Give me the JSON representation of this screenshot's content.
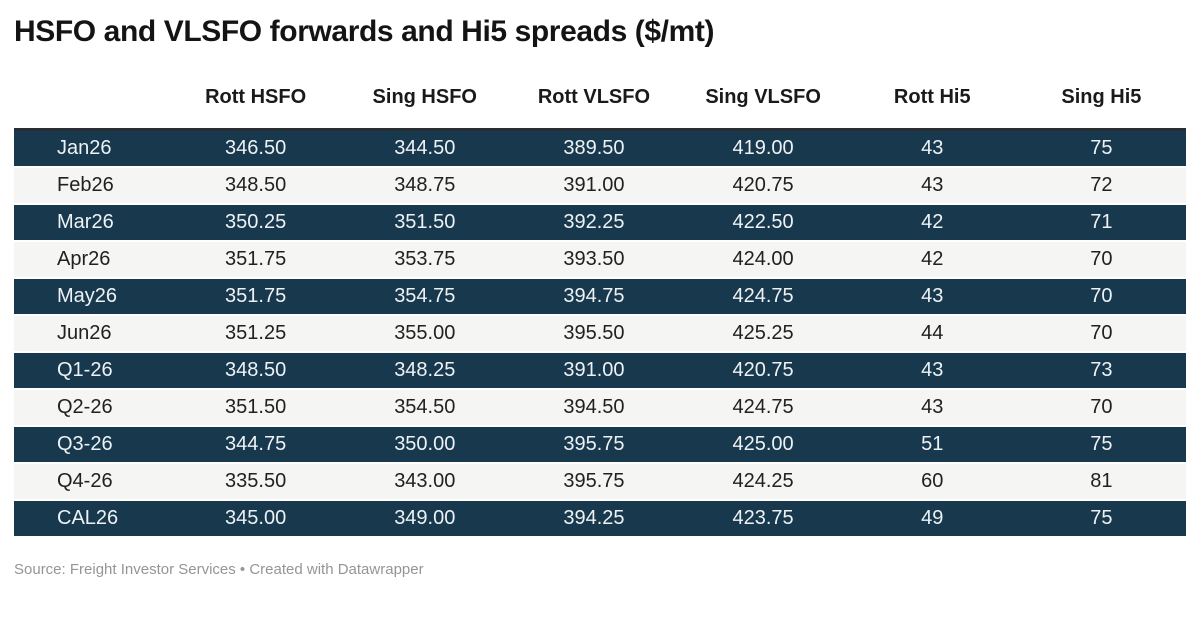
{
  "title": "HSFO and VLSFO forwards and Hi5 spreads ($/mt)",
  "footer": {
    "text": "Source: Freight Investor Services • Created with Datawrapper"
  },
  "colors": {
    "row_dark_bg": "#17384d",
    "row_light_bg": "#f5f5f3",
    "header_rule": "#2a2d31",
    "dark_row_text": "#eef2f5",
    "light_row_text": "#212121",
    "title_text": "#141414",
    "footer_text": "#959595"
  },
  "chart_data": {
    "type": "table",
    "title": "HSFO and VLSFO forwards and Hi5 spreads ($/mt)",
    "columns": [
      "",
      "Rott HSFO",
      "Sing HSFO",
      "Rott VLSFO",
      "Sing VLSFO",
      "Rott Hi5",
      "Sing Hi5"
    ],
    "rows": [
      [
        "Jan26",
        "346.50",
        "344.50",
        "389.50",
        "419.00",
        "43",
        "75"
      ],
      [
        "Feb26",
        "348.50",
        "348.75",
        "391.00",
        "420.75",
        "43",
        "72"
      ],
      [
        "Mar26",
        "350.25",
        "351.50",
        "392.25",
        "422.50",
        "42",
        "71"
      ],
      [
        "Apr26",
        "351.75",
        "353.75",
        "393.50",
        "424.00",
        "42",
        "70"
      ],
      [
        "May26",
        "351.75",
        "354.75",
        "394.75",
        "424.75",
        "43",
        "70"
      ],
      [
        "Jun26",
        "351.25",
        "355.00",
        "395.50",
        "425.25",
        "44",
        "70"
      ],
      [
        "Q1-26",
        "348.50",
        "348.25",
        "391.00",
        "420.75",
        "43",
        "73"
      ],
      [
        "Q2-26",
        "351.50",
        "354.50",
        "394.50",
        "424.75",
        "43",
        "70"
      ],
      [
        "Q3-26",
        "344.75",
        "350.00",
        "395.75",
        "425.00",
        "51",
        "75"
      ],
      [
        "Q4-26",
        "335.50",
        "343.00",
        "395.75",
        "424.25",
        "60",
        "81"
      ],
      [
        "CAL26",
        "345.00",
        "349.00",
        "394.25",
        "423.75",
        "49",
        "75"
      ]
    ],
    "row_stripe_pattern": "dark,light alternating starting dark",
    "source": "Freight Investor Services",
    "created_with": "Datawrapper"
  }
}
